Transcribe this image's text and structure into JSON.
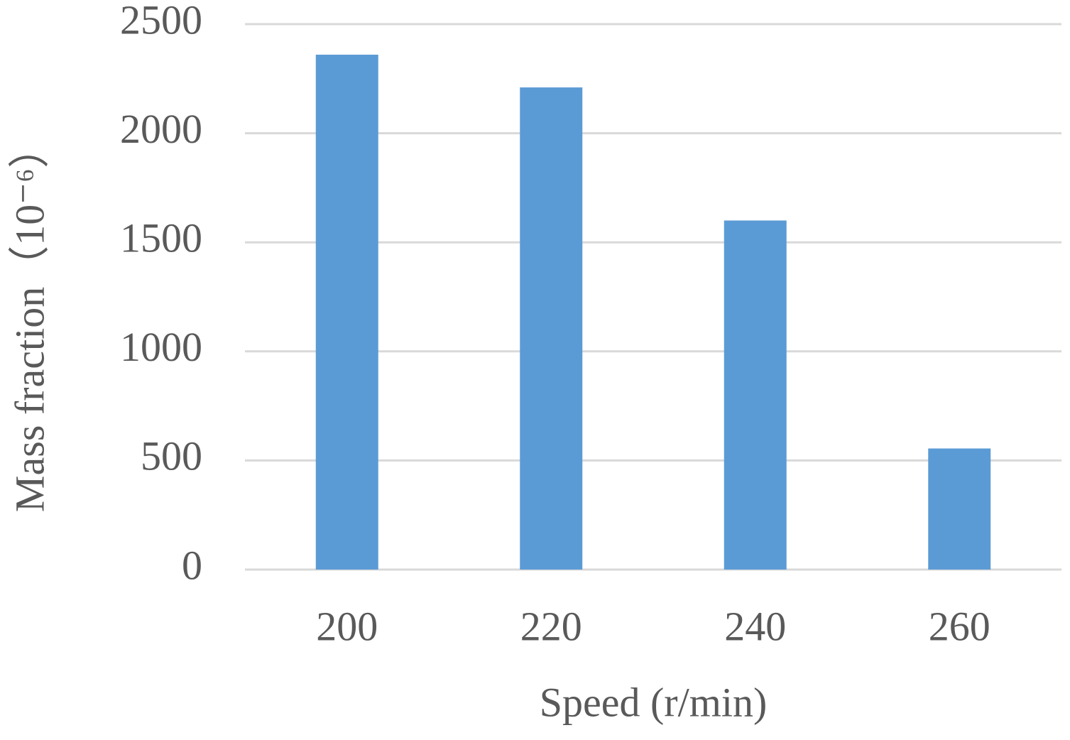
{
  "chart_data": {
    "type": "bar",
    "x_label": "Speed (r/min)",
    "y_label": "Mass fraction（10⁻⁶）",
    "categories": [
      "200",
      "220",
      "240",
      "260"
    ],
    "values": [
      2360,
      2210,
      1600,
      555
    ],
    "color": "#5b9bd5",
    "ylim": [
      0,
      2500
    ],
    "yticks": [
      0,
      500,
      1000,
      1500,
      2000,
      2500
    ],
    "grid": true
  }
}
